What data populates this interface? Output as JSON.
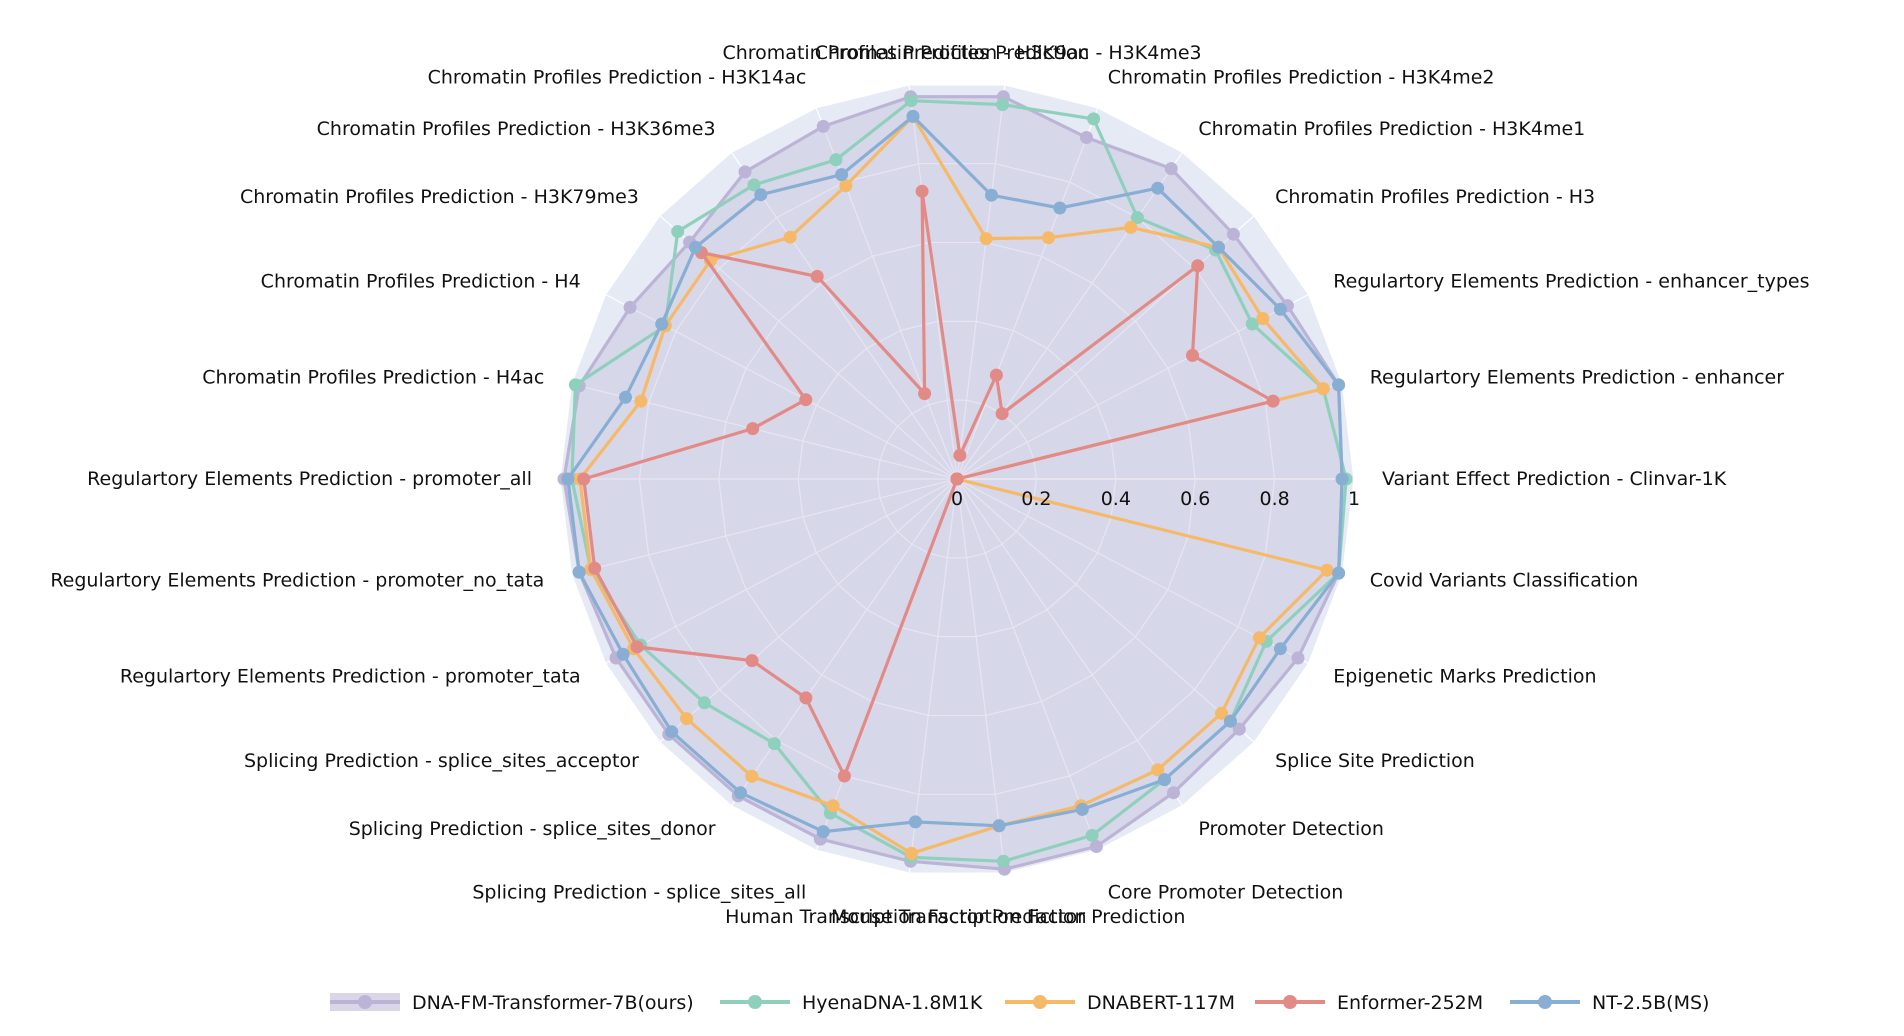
{
  "chart_data": {
    "type": "radar",
    "title": "",
    "radial_range": [
      0,
      1
    ],
    "radial_ticks": [
      "0",
      "0.2",
      "0.4",
      "0.6",
      "0.8",
      "1"
    ],
    "legend_position": "bottom",
    "axes": [
      "Variant Effect Prediction - Clinvar-1K",
      "Regulartory Elements Prediction - enhancer",
      "Regulartory Elements Prediction - enhancer_types",
      "Chromatin Profiles Prediction - H3",
      "Chromatin Profiles Prediction - H3K4me1",
      "Chromatin Profiles Prediction - H3K4me2",
      "Chromatin Profiles Prediction - H3K4me3",
      "Chromatin Profiles Prediction - H3K9ac",
      "Chromatin Profiles Prediction - H3K14ac",
      "Chromatin Profiles Prediction - H3K36me3",
      "Chromatin Profiles Prediction - H3K79me3",
      "Chromatin Profiles Prediction - H4",
      "Chromatin Profiles Prediction - H4ac",
      "Regulartory Elements Prediction - promoter_all",
      "Regulartory Elements Prediction - promoter_no_tata",
      "Regulartory Elements Prediction - promoter_tata",
      "Splicing Prediction - splice_sites_acceptor",
      "Splicing Prediction - splice_sites_donor",
      "Splicing Prediction - splice_sites_all",
      "Human Transcription Factor Prediction",
      "Mouse Transcription Factor Prediction",
      "Core Promoter Detection",
      "Promoter Detection",
      "Splice Site Prediction",
      "Epigenetic Marks Prediction",
      "Covid Variants Classification"
    ],
    "series": [
      {
        "name": "DNA-FM-Transformer-7B(ours)",
        "color": "#bcb4d6",
        "fill": true,
        "values": [
          0.97,
          0.99,
          0.94,
          0.93,
          0.95,
          0.92,
          0.97,
          0.97,
          0.95,
          0.94,
          0.9,
          0.93,
          0.98,
          0.99,
          0.98,
          0.97,
          0.97,
          0.97,
          0.97,
          0.97,
          0.99,
          0.99,
          0.96,
          0.95,
          0.97,
          0.99
        ]
      },
      {
        "name": "HyenaDNA-1.8M1K",
        "color": "#8fd0bd",
        "values": [
          0.98,
          0.95,
          0.84,
          0.87,
          0.8,
          0.97,
          0.95,
          0.96,
          0.86,
          0.9,
          0.94,
          0.83,
          0.99,
          0.97,
          0.95,
          0.9,
          0.85,
          0.81,
          0.9,
          0.96,
          0.97,
          0.96,
          0.92,
          0.92,
          0.88,
          0.99
        ]
      },
      {
        "name": "DNABERT-117M",
        "color": "#f5b968",
        "values": [
          0.0,
          0.95,
          0.87,
          0.88,
          0.77,
          0.65,
          0.61,
          0.92,
          0.79,
          0.74,
          0.83,
          0.83,
          0.82,
          0.95,
          0.95,
          0.92,
          0.91,
          0.91,
          0.88,
          0.95,
          0.88,
          0.88,
          0.89,
          0.89,
          0.86,
          0.96
        ]
      },
      {
        "name": "Enformer-252M",
        "color": "#e28a86",
        "values": [
          0.0,
          0.82,
          0.67,
          0.81,
          0.2,
          0.28,
          0.06,
          0.73,
          0.23,
          0.62,
          0.86,
          0.43,
          0.53,
          0.94,
          0.94,
          0.91,
          0.69,
          0.67,
          0.8,
          0.0,
          0.0,
          0.0,
          0.0,
          0.0,
          0.0,
          0.0
        ]
      },
      {
        "name": "NT-2.5B(MS)",
        "color": "#88aed3",
        "values": [
          0.97,
          0.99,
          0.92,
          0.88,
          0.89,
          0.73,
          0.72,
          0.92,
          0.82,
          0.87,
          0.88,
          0.84,
          0.86,
          0.98,
          0.98,
          0.95,
          0.96,
          0.96,
          0.95,
          0.87,
          0.88,
          0.89,
          0.92,
          0.92,
          0.92,
          0.99
        ]
      }
    ]
  }
}
